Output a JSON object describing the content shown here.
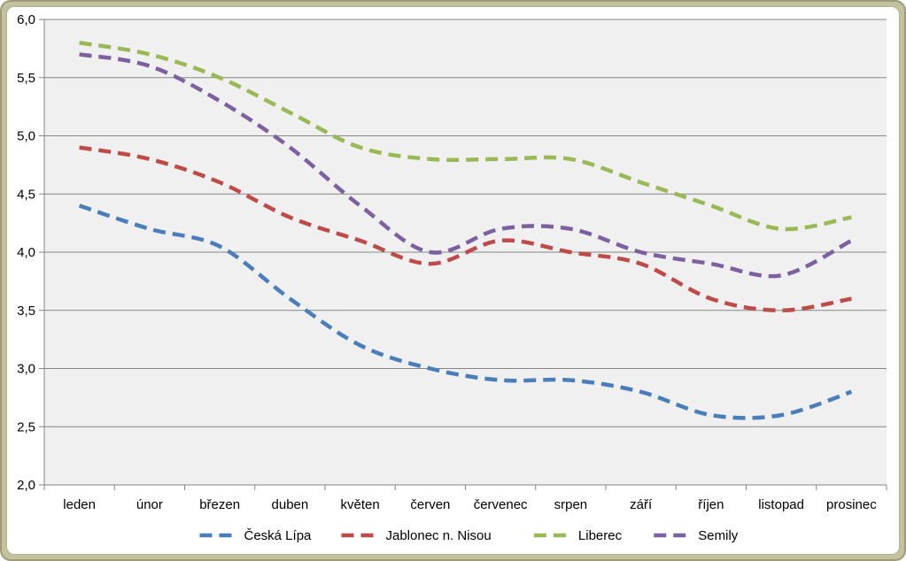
{
  "chart_data": {
    "type": "line",
    "title": "",
    "xlabel": "",
    "ylabel": "",
    "categories": [
      "leden",
      "únor",
      "březen",
      "duben",
      "květen",
      "červen",
      "červenec",
      "srpen",
      "září",
      "říjen",
      "listopad",
      "prosinec"
    ],
    "ylim": [
      2.0,
      6.0
    ],
    "yticks": [
      "2,0",
      "2,5",
      "3,0",
      "3,5",
      "4,0",
      "4,5",
      "5,0",
      "5,5",
      "6,0"
    ],
    "grid": true,
    "legend_position": "bottom",
    "line_style": "dashed-smooth",
    "series": [
      {
        "name": "Česká Lípa",
        "color": "#4a7ebb",
        "values": [
          4.4,
          4.2,
          4.05,
          3.6,
          3.2,
          3.0,
          2.9,
          2.9,
          2.8,
          2.6,
          2.6,
          2.8
        ]
      },
      {
        "name": "Jablonec n. Nisou",
        "color": "#be4b48",
        "values": [
          4.9,
          4.8,
          4.6,
          4.3,
          4.1,
          3.9,
          4.1,
          4.0,
          3.9,
          3.6,
          3.5,
          3.6
        ]
      },
      {
        "name": "Liberec",
        "color": "#98b954",
        "values": [
          5.8,
          5.7,
          5.5,
          5.2,
          4.9,
          4.8,
          4.8,
          4.8,
          4.6,
          4.4,
          4.2,
          4.3
        ]
      },
      {
        "name": "Semily",
        "color": "#7d60a0",
        "values": [
          5.7,
          5.6,
          5.3,
          4.9,
          4.4,
          4.0,
          4.2,
          4.2,
          4.0,
          3.9,
          3.8,
          4.1
        ]
      }
    ]
  }
}
